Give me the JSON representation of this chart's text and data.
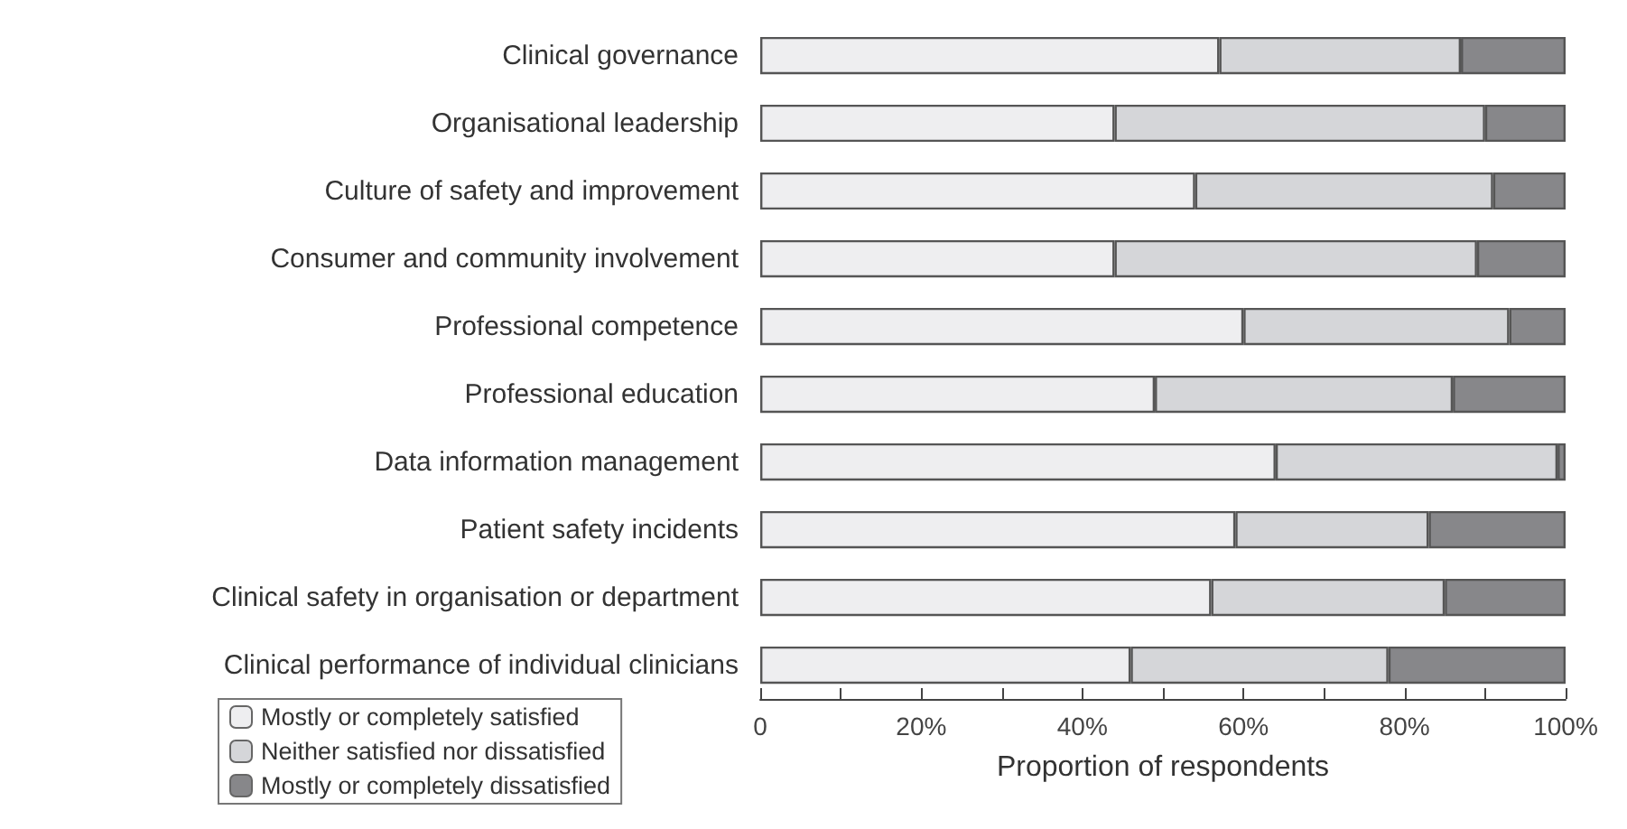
{
  "chart_data": {
    "type": "bar",
    "orientation": "horizontal",
    "stacked": true,
    "xlabel": "Proportion of respondents",
    "categories": [
      "Clinical governance",
      "Organisational leadership",
      "Culture of safety and improvement",
      "Consumer and community involvement",
      "Professional competence",
      "Professional education",
      "Data information management",
      "Patient safety incidents",
      "Clinical safety in organisation or department",
      "Clinical performance of individual clinicians"
    ],
    "series": [
      {
        "name": "Mostly or completely satisfied",
        "color": "#eeeef0",
        "values": [
          57,
          44,
          54,
          44,
          60,
          49,
          64,
          59,
          56,
          46
        ]
      },
      {
        "name": "Neither satisfied nor dissatisfied",
        "color": "#d5d6d9",
        "values": [
          30,
          46,
          37,
          45,
          33,
          37,
          35,
          24,
          29,
          32
        ]
      },
      {
        "name": "Mostly or completely dissatisfied",
        "color": "#87878a",
        "values": [
          13,
          10,
          9,
          11,
          7,
          14,
          1,
          17,
          15,
          22
        ]
      }
    ],
    "xlim": [
      0,
      100
    ],
    "xticks": [
      {
        "value": 0,
        "label": "0"
      },
      {
        "value": 10,
        "label": null
      },
      {
        "value": 20,
        "label": "20%"
      },
      {
        "value": 30,
        "label": null
      },
      {
        "value": 40,
        "label": "40%"
      },
      {
        "value": 50,
        "label": null
      },
      {
        "value": 60,
        "label": "60%"
      },
      {
        "value": 70,
        "label": null
      },
      {
        "value": 80,
        "label": "80%"
      },
      {
        "value": 90,
        "label": null
      },
      {
        "value": 100,
        "label": "100%"
      }
    ],
    "legend": "bottom left",
    "grid": false
  }
}
